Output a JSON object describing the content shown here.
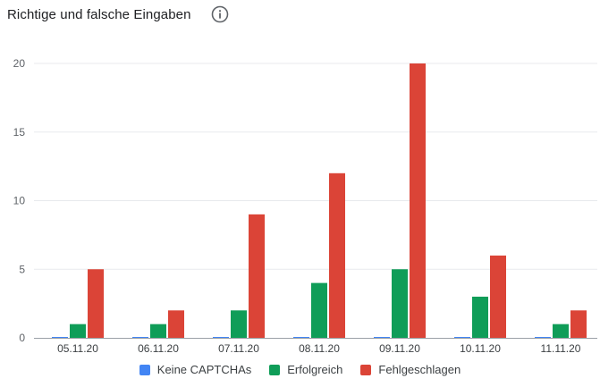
{
  "header": {
    "title": "Richtige und falsche Eingaben",
    "info_icon": "info-icon"
  },
  "chart_data": {
    "type": "bar",
    "title": "Richtige und falsche Eingaben",
    "xlabel": "",
    "ylabel": "",
    "categories": [
      "05.11.20",
      "06.11.20",
      "07.11.20",
      "08.11.20",
      "09.11.20",
      "10.11.20",
      "11.11.20"
    ],
    "ylim": [
      0,
      20
    ],
    "yticks": [
      0,
      5,
      10,
      15,
      20
    ],
    "grid": true,
    "legend_position": "bottom",
    "series": [
      {
        "name": "Keine CAPTCHAs",
        "color": "#4285f4",
        "values": [
          0,
          0,
          0,
          0,
          0,
          0,
          0
        ]
      },
      {
        "name": "Erfolgreich",
        "color": "#0f9d58",
        "values": [
          1,
          1,
          2,
          4,
          5,
          3,
          1
        ]
      },
      {
        "name": "Fehlgeschlagen",
        "color": "#db4437",
        "values": [
          5,
          2,
          9,
          12,
          20,
          6,
          2
        ]
      }
    ]
  }
}
